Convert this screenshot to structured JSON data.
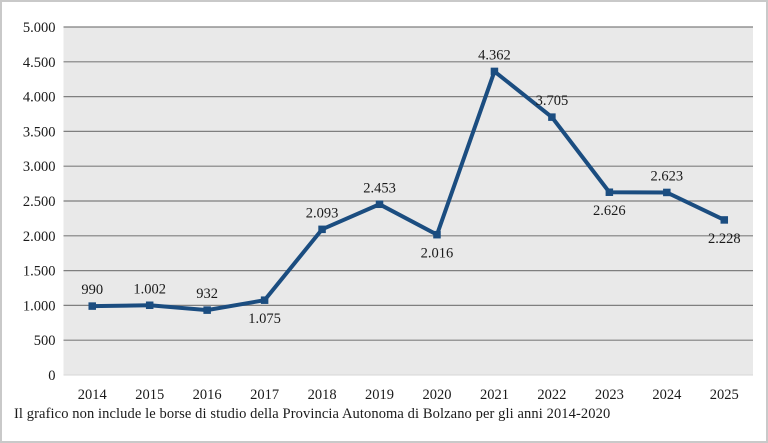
{
  "caption": "Il grafico non include le borse di studio della Provincia Autonoma di Bolzano per gli anni 2014-2020",
  "chart_data": {
    "type": "line",
    "title": "",
    "categories": [
      "2014",
      "2015",
      "2016",
      "2017",
      "2018",
      "2019",
      "2020",
      "2021",
      "2022",
      "2023",
      "2024",
      "2025"
    ],
    "values": [
      990,
      1002,
      932,
      1075,
      2093,
      2453,
      2016,
      4362,
      3705,
      2626,
      2623,
      2228
    ],
    "data_labels": [
      "990",
      "1.002",
      "932",
      "1.075",
      "2.093",
      "2.453",
      "2.016",
      "4.362",
      "3.705",
      "2.626",
      "2.623",
      "2.228"
    ],
    "label_positions": [
      "above",
      "above",
      "above",
      "below",
      "above",
      "above",
      "below",
      "above",
      "above",
      "below",
      "above",
      "below"
    ],
    "y_ticks": [
      0,
      500,
      1000,
      1500,
      2000,
      2500,
      3000,
      3500,
      4000,
      4500,
      5000
    ],
    "y_tick_labels": [
      "0",
      "500",
      "1.000",
      "1.500",
      "2.000",
      "2.500",
      "3.000",
      "3.500",
      "4.000",
      "4.500",
      "5.000"
    ],
    "ylim": [
      0,
      5000
    ],
    "grid": "horizontal",
    "legend": "none",
    "colors": {
      "line": "#1b4d80",
      "marker": "#1b4d80",
      "plot_background": "#e9e9e9",
      "gridline": "#7f7f7f",
      "baseline": "#d6d6d6",
      "text": "#1a1a1a"
    }
  }
}
